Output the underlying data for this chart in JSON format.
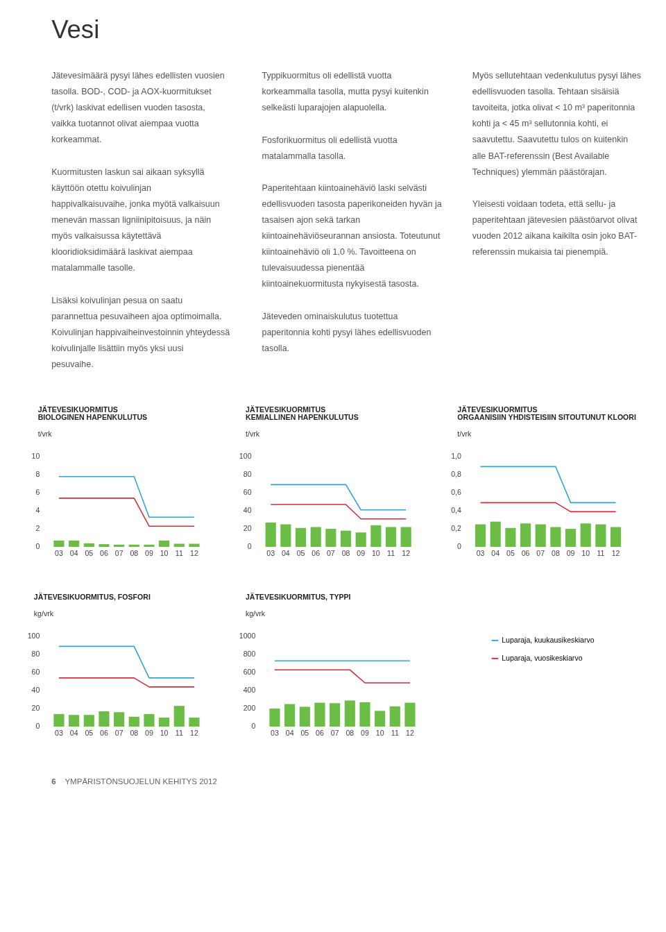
{
  "chart_data": [
    {
      "type": "other",
      "title": "Vesi",
      "annotations": [
        "Jätevesimäärä pysyi lähes edellisten vuosien tasolla. BOD-, COD- ja AOX-kuormitukset (t/vrk) laskivat edellisen vuoden tasosta, vaikka tuotannot olivat aiempaa vuotta korkeammat.",
        "Kuormitusten laskun sai aikaan syksyllä käyttöön otettu koivulinjan happivalkaisuvaihe, jonka myötä valkaisuun menevän massan ligniinipitoisuus, ja näin myös valkaisussa käytettävä klooridioksidimäärä laskivat aiempaa matalammalle tasolle.",
        "Lisäksi koivulinjan pesua on saatu parannettua pesuvaiheen ajoa optimoimalla. Koivulinjan happivaiheinvestoinnin yhteydessä koivulinjalle lisättiin myös yksi uusi pesuvaihe."
      ]
    },
    {
      "type": "other",
      "annotations": [
        "Typpikuormitus oli edellistä vuotta korkeammalla tasolla, mutta pysyi kuitenkin selkeästi luparajojen alapuolella.",
        "Fosforikuormitus oli edellistä vuotta matalammalla tasolla.",
        "Paperitehtaan kiintoainehäviö laski selvästi edellisvuoden tasosta paperikoneiden hyvän ja tasaisen ajon sekä tarkan kiintoainehäviöseurannan ansiosta. Toteutunut kiintoainehäviö oli 1,0 %. Tavoitteena on tulevaisuudessa pienentää kiintoainekuormitusta nykyisestä tasosta.",
        "Jäteveden ominaiskulutus tuotettua paperitonnia kohti pysyi lähes edellisvuoden tasolla."
      ]
    },
    {
      "type": "other",
      "annotations": [
        "Myös sellutehtaan vedenkulutus pysyi lähes edellisvuoden tasolla. Tehtaan sisäisiä tavoiteita, jotka olivat < 10 m³ paperitonnia kohti ja < 45 m³ sellutonnia kohti, ei saavutettu. Saavutettu tulos on kuitenkin alle BAT-referenssin (Best Available Techniques) ylemmän päästörajan.",
        "Yleisesti voidaan todeta, että sellu- ja paperitehtaan jätevesien päästöarvot olivat vuoden 2012 aikana kaikilta osin joko BAT-referenssin mukaisia tai pienempiä."
      ]
    },
    {
      "type": "bar",
      "title": "JÄTEVESIKUORMITUS\nBIOLOGINEN HAPENKULUTUS",
      "ylabel": "t/vrk",
      "legend": false,
      "categories": [
        "03",
        "04",
        "05",
        "06",
        "07",
        "08",
        "09",
        "10",
        "11",
        "12"
      ],
      "ylim": [
        0,
        10
      ],
      "yticks": [
        0,
        2,
        4,
        6,
        8,
        10
      ],
      "series": [
        {
          "type": "bar",
          "color": "#6cbd45",
          "values": [
            0.7,
            0.7,
            0.4,
            0.3,
            0.25,
            0.25,
            0.25,
            0.7,
            0.35,
            0.35
          ]
        },
        {
          "type": "line",
          "color": "#2ea3d6",
          "values": [
            7.8,
            7.8,
            7.8,
            7.8,
            7.8,
            7.8,
            3.3,
            3.3,
            3.3,
            3.3
          ]
        },
        {
          "type": "line",
          "color": "#d52b3a",
          "values": [
            5.4,
            5.4,
            5.4,
            5.4,
            5.4,
            5.4,
            2.3,
            2.3,
            2.3,
            2.3
          ]
        }
      ]
    },
    {
      "type": "bar",
      "title": "JÄTEVESIKUORMITUS\nKEMIALLINEN HAPENKULUTUS",
      "ylabel": "t/vrk",
      "legend": false,
      "categories": [
        "03",
        "04",
        "05",
        "06",
        "07",
        "08",
        "09",
        "10",
        "11",
        "12"
      ],
      "ylim": [
        0,
        100
      ],
      "yticks": [
        0,
        20,
        40,
        60,
        80,
        100
      ],
      "series": [
        {
          "type": "bar",
          "color": "#6cbd45",
          "values": [
            27,
            25,
            21,
            22,
            20,
            18,
            16,
            24,
            22,
            22
          ]
        },
        {
          "type": "line",
          "color": "#2ea3d6",
          "values": [
            69,
            69,
            69,
            69,
            69,
            69,
            41,
            41,
            41,
            41
          ]
        },
        {
          "type": "line",
          "color": "#d52b3a",
          "values": [
            47,
            47,
            47,
            47,
            47,
            47,
            31,
            31,
            31,
            31
          ]
        }
      ]
    },
    {
      "type": "bar",
      "title": "JÄTEVESIKUORMITUS\nORGAANISIIN YHDISTEISIIN SITOUTUNUT KLOORI",
      "ylabel": "t/vrk",
      "legend": false,
      "categories": [
        "03",
        "04",
        "05",
        "06",
        "07",
        "08",
        "09",
        "10",
        "11",
        "12"
      ],
      "ylim": [
        0,
        1
      ],
      "yticks": [
        0,
        {
          "value": 0.2,
          "label": "0,2"
        },
        {
          "value": 0.4,
          "label": "0,4"
        },
        {
          "value": 0.6,
          "label": "0,6"
        },
        {
          "value": 0.8,
          "label": "0,8"
        },
        {
          "value": 1,
          "label": "1,0"
        }
      ],
      "series": [
        {
          "type": "bar",
          "color": "#6cbd45",
          "values": [
            0.25,
            0.28,
            0.21,
            0.26,
            0.25,
            0.22,
            0.2,
            0.26,
            0.25,
            0.22
          ]
        },
        {
          "type": "line",
          "color": "#2ea3d6",
          "values": [
            0.89,
            0.89,
            0.89,
            0.89,
            0.89,
            0.89,
            0.49,
            0.49,
            0.49,
            0.49
          ]
        },
        {
          "type": "line",
          "color": "#d52b3a",
          "values": [
            0.49,
            0.49,
            0.49,
            0.49,
            0.49,
            0.49,
            0.39,
            0.39,
            0.39,
            0.39
          ]
        }
      ]
    },
    {
      "type": "bar",
      "title": "JÄTEVESIKUORMITUS, FOSFORI",
      "ylabel": "kg/vrk",
      "legend": false,
      "categories": [
        "03",
        "04",
        "05",
        "06",
        "07",
        "08",
        "09",
        "10",
        "11",
        "12"
      ],
      "ylim": [
        0,
        100
      ],
      "yticks": [
        0,
        20,
        40,
        60,
        80,
        100
      ],
      "series": [
        {
          "type": "bar",
          "color": "#6cbd45",
          "values": [
            14,
            13,
            13,
            17,
            16,
            11,
            14,
            10,
            23,
            10
          ]
        },
        {
          "type": "line",
          "color": "#2ea3d6",
          "values": [
            89,
            89,
            89,
            89,
            89,
            89,
            54,
            54,
            54,
            54
          ]
        },
        {
          "type": "line",
          "color": "#d52b3a",
          "values": [
            54,
            54,
            54,
            54,
            54,
            54,
            44,
            44,
            44,
            44
          ]
        }
      ]
    },
    {
      "type": "bar",
      "title": "JÄTEVESIKUORMITUS, TYPPI",
      "ylabel": "kg/vrk",
      "legend": "right",
      "categories": [
        "03",
        "04",
        "05",
        "06",
        "07",
        "08",
        "09",
        "10",
        "11",
        "12"
      ],
      "ylim": [
        0,
        1000
      ],
      "yticks": [
        0,
        200,
        400,
        600,
        800,
        1000
      ],
      "series": [
        {
          "type": "bar",
          "color": "#6cbd45",
          "values": [
            200,
            250,
            220,
            265,
            260,
            290,
            270,
            175,
            225,
            265
          ]
        },
        {
          "type": "line",
          "name": "Luparaja, kuukausikeskiarvo",
          "color": "#2ea3d6",
          "values": [
            730,
            730,
            730,
            730,
            730,
            730,
            730,
            730,
            730,
            730
          ]
        },
        {
          "type": "line",
          "name": "Luparaja, vuosikeskiarvo",
          "color": "#d52b3a",
          "values": [
            630,
            630,
            630,
            630,
            630,
            630,
            485,
            485,
            485,
            485
          ]
        }
      ]
    },
    {
      "type": "other",
      "annotations": [
        "6",
        "YMPÄRISTÖNSUOJELUN KEHITYS 2012"
      ]
    }
  ]
}
